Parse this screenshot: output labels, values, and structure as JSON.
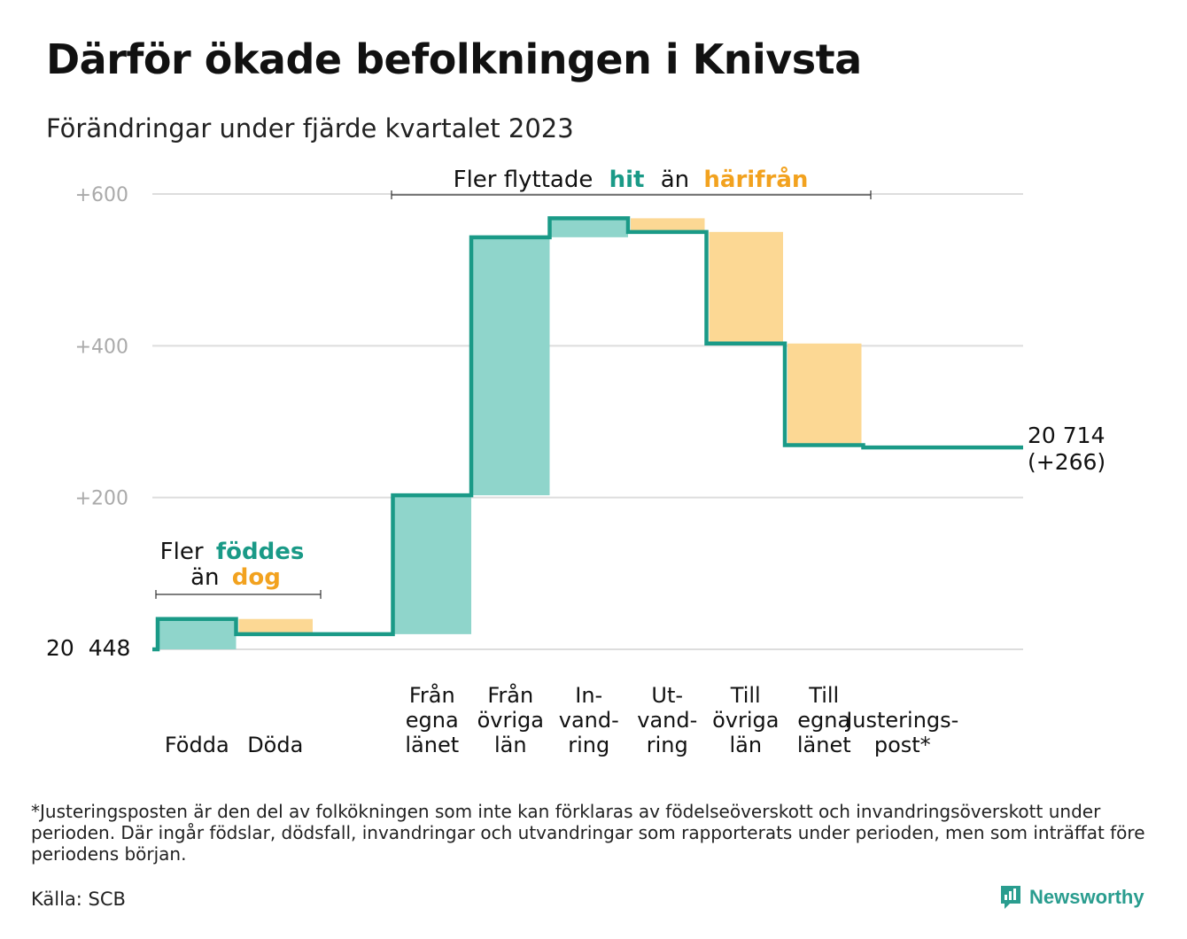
{
  "title": "Därför ökade befolkningen i Knivsta",
  "subtitle": "Förändringar under fjärde kvartalet 2023",
  "colors": {
    "teal": "#1a9a87",
    "teal_fill": "#8fd5cb",
    "orange": "#f2a21f",
    "orange_fill": "#fcd894",
    "grid": "#dddddd",
    "tick": "#aaaaaa"
  },
  "annotations": {
    "migration_prefix": "Fler flyttade",
    "migration_hit": "hit",
    "migration_mid": "än",
    "migration_harifran": "härifrån",
    "births_prefix": "Fler",
    "births_fodde": "föddes",
    "births_mid": "än",
    "births_dog": "dog"
  },
  "start_label": "20  448",
  "end_label_line1": "20 714",
  "end_label_line2": "(+266)",
  "chart_data": {
    "type": "waterfall",
    "title": "Därför ökade befolkningen i Knivsta",
    "subtitle": "Förändringar under fjärde kvartalet 2023",
    "start_population": 20448,
    "end_population": 20714,
    "net_change": 266,
    "y_ticks": [
      "+200",
      "+400",
      "+600"
    ],
    "y_tick_values": [
      200,
      400,
      600
    ],
    "ylim": [
      0,
      600
    ],
    "grid": true,
    "steps": [
      {
        "label_lines": [
          "Födda"
        ],
        "value": 40,
        "cumulative": 40,
        "kind": "increase"
      },
      {
        "label_lines": [
          "Döda"
        ],
        "value": -20,
        "cumulative": 20,
        "kind": "decrease"
      },
      {
        "label_lines": [],
        "value": 0,
        "cumulative": 20,
        "kind": "gap"
      },
      {
        "label_lines": [
          "Från",
          "egna",
          "länet"
        ],
        "value": 183,
        "cumulative": 203,
        "kind": "increase"
      },
      {
        "label_lines": [
          "Från",
          "övriga",
          "län"
        ],
        "value": 340,
        "cumulative": 543,
        "kind": "increase"
      },
      {
        "label_lines": [
          "In-",
          "vand-",
          "ring"
        ],
        "value": 25,
        "cumulative": 568,
        "kind": "increase"
      },
      {
        "label_lines": [
          "Ut-",
          "vand-",
          "ring"
        ],
        "value": -18,
        "cumulative": 550,
        "kind": "decrease"
      },
      {
        "label_lines": [
          "Till",
          "övriga",
          "län"
        ],
        "value": -147,
        "cumulative": 403,
        "kind": "decrease"
      },
      {
        "label_lines": [
          "Till",
          "egna",
          "länet"
        ],
        "value": -134,
        "cumulative": 269,
        "kind": "decrease"
      },
      {
        "label_lines": [
          "Justerings-",
          "post*"
        ],
        "value": -3,
        "cumulative": 266,
        "kind": "adjustment"
      }
    ]
  },
  "footnote": "*Justeringsposten är den del av folkökningen som inte kan förklaras av födelseöverskott och invandringsöverskott under perioden. Där ingår födslar, dödsfall, invandringar och utvandringar som rapporterats under perioden, men som inträffat före periodens början.",
  "source": "Källa: SCB",
  "brand": "Newsworthy"
}
